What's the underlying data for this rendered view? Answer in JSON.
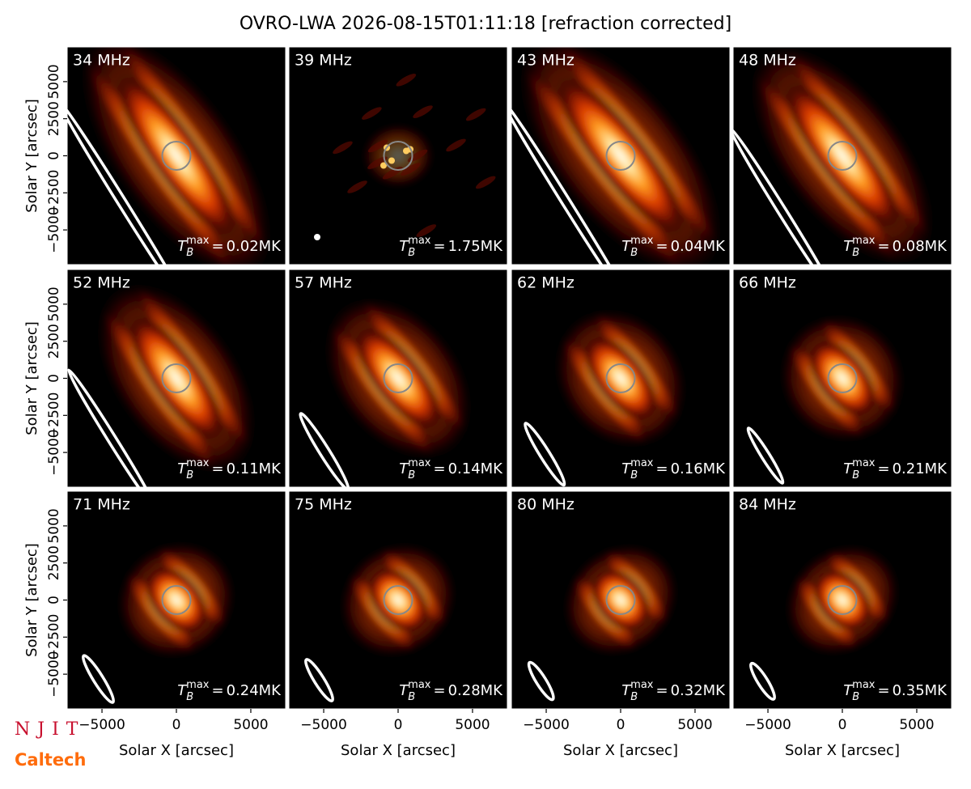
{
  "chart_data": {
    "type": "image-grid",
    "title": "OVRO-LWA 2026-08-15T01:11:18 [refraction corrected]",
    "xlabel": "Solar X [arcsec]",
    "ylabel": "Solar Y [arcsec]",
    "xlim": [
      -7340,
      7340
    ],
    "ylim": [
      -7340,
      7340
    ],
    "xticks": [
      {
        "value": -5000,
        "label": "−5000"
      },
      0,
      5000
    ],
    "yticks": [
      {
        "value": -5000,
        "label": "−5000"
      },
      {
        "value": -2500,
        "label": "−2500"
      },
      0,
      2500,
      5000
    ],
    "tmax_symbol": "T",
    "tmax_sub": "B",
    "tmax_sup": "max",
    "tmax_eq": "=",
    "panels": [
      {
        "freq": "34 MHz",
        "tmax": "0.02MK"
      },
      {
        "freq": "39 MHz",
        "tmax": "1.75MK"
      },
      {
        "freq": "43 MHz",
        "tmax": "0.04MK"
      },
      {
        "freq": "48 MHz",
        "tmax": "0.08MK"
      },
      {
        "freq": "52 MHz",
        "tmax": "0.11MK"
      },
      {
        "freq": "57 MHz",
        "tmax": "0.14MK"
      },
      {
        "freq": "62 MHz",
        "tmax": "0.16MK"
      },
      {
        "freq": "66 MHz",
        "tmax": "0.21MK"
      },
      {
        "freq": "71 MHz",
        "tmax": "0.24MK"
      },
      {
        "freq": "75 MHz",
        "tmax": "0.28MK"
      },
      {
        "freq": "80 MHz",
        "tmax": "0.32MK"
      },
      {
        "freq": "84 MHz",
        "tmax": "0.35MK"
      }
    ]
  },
  "logos": {
    "njit": "NJIT",
    "caltech": "Caltech"
  }
}
